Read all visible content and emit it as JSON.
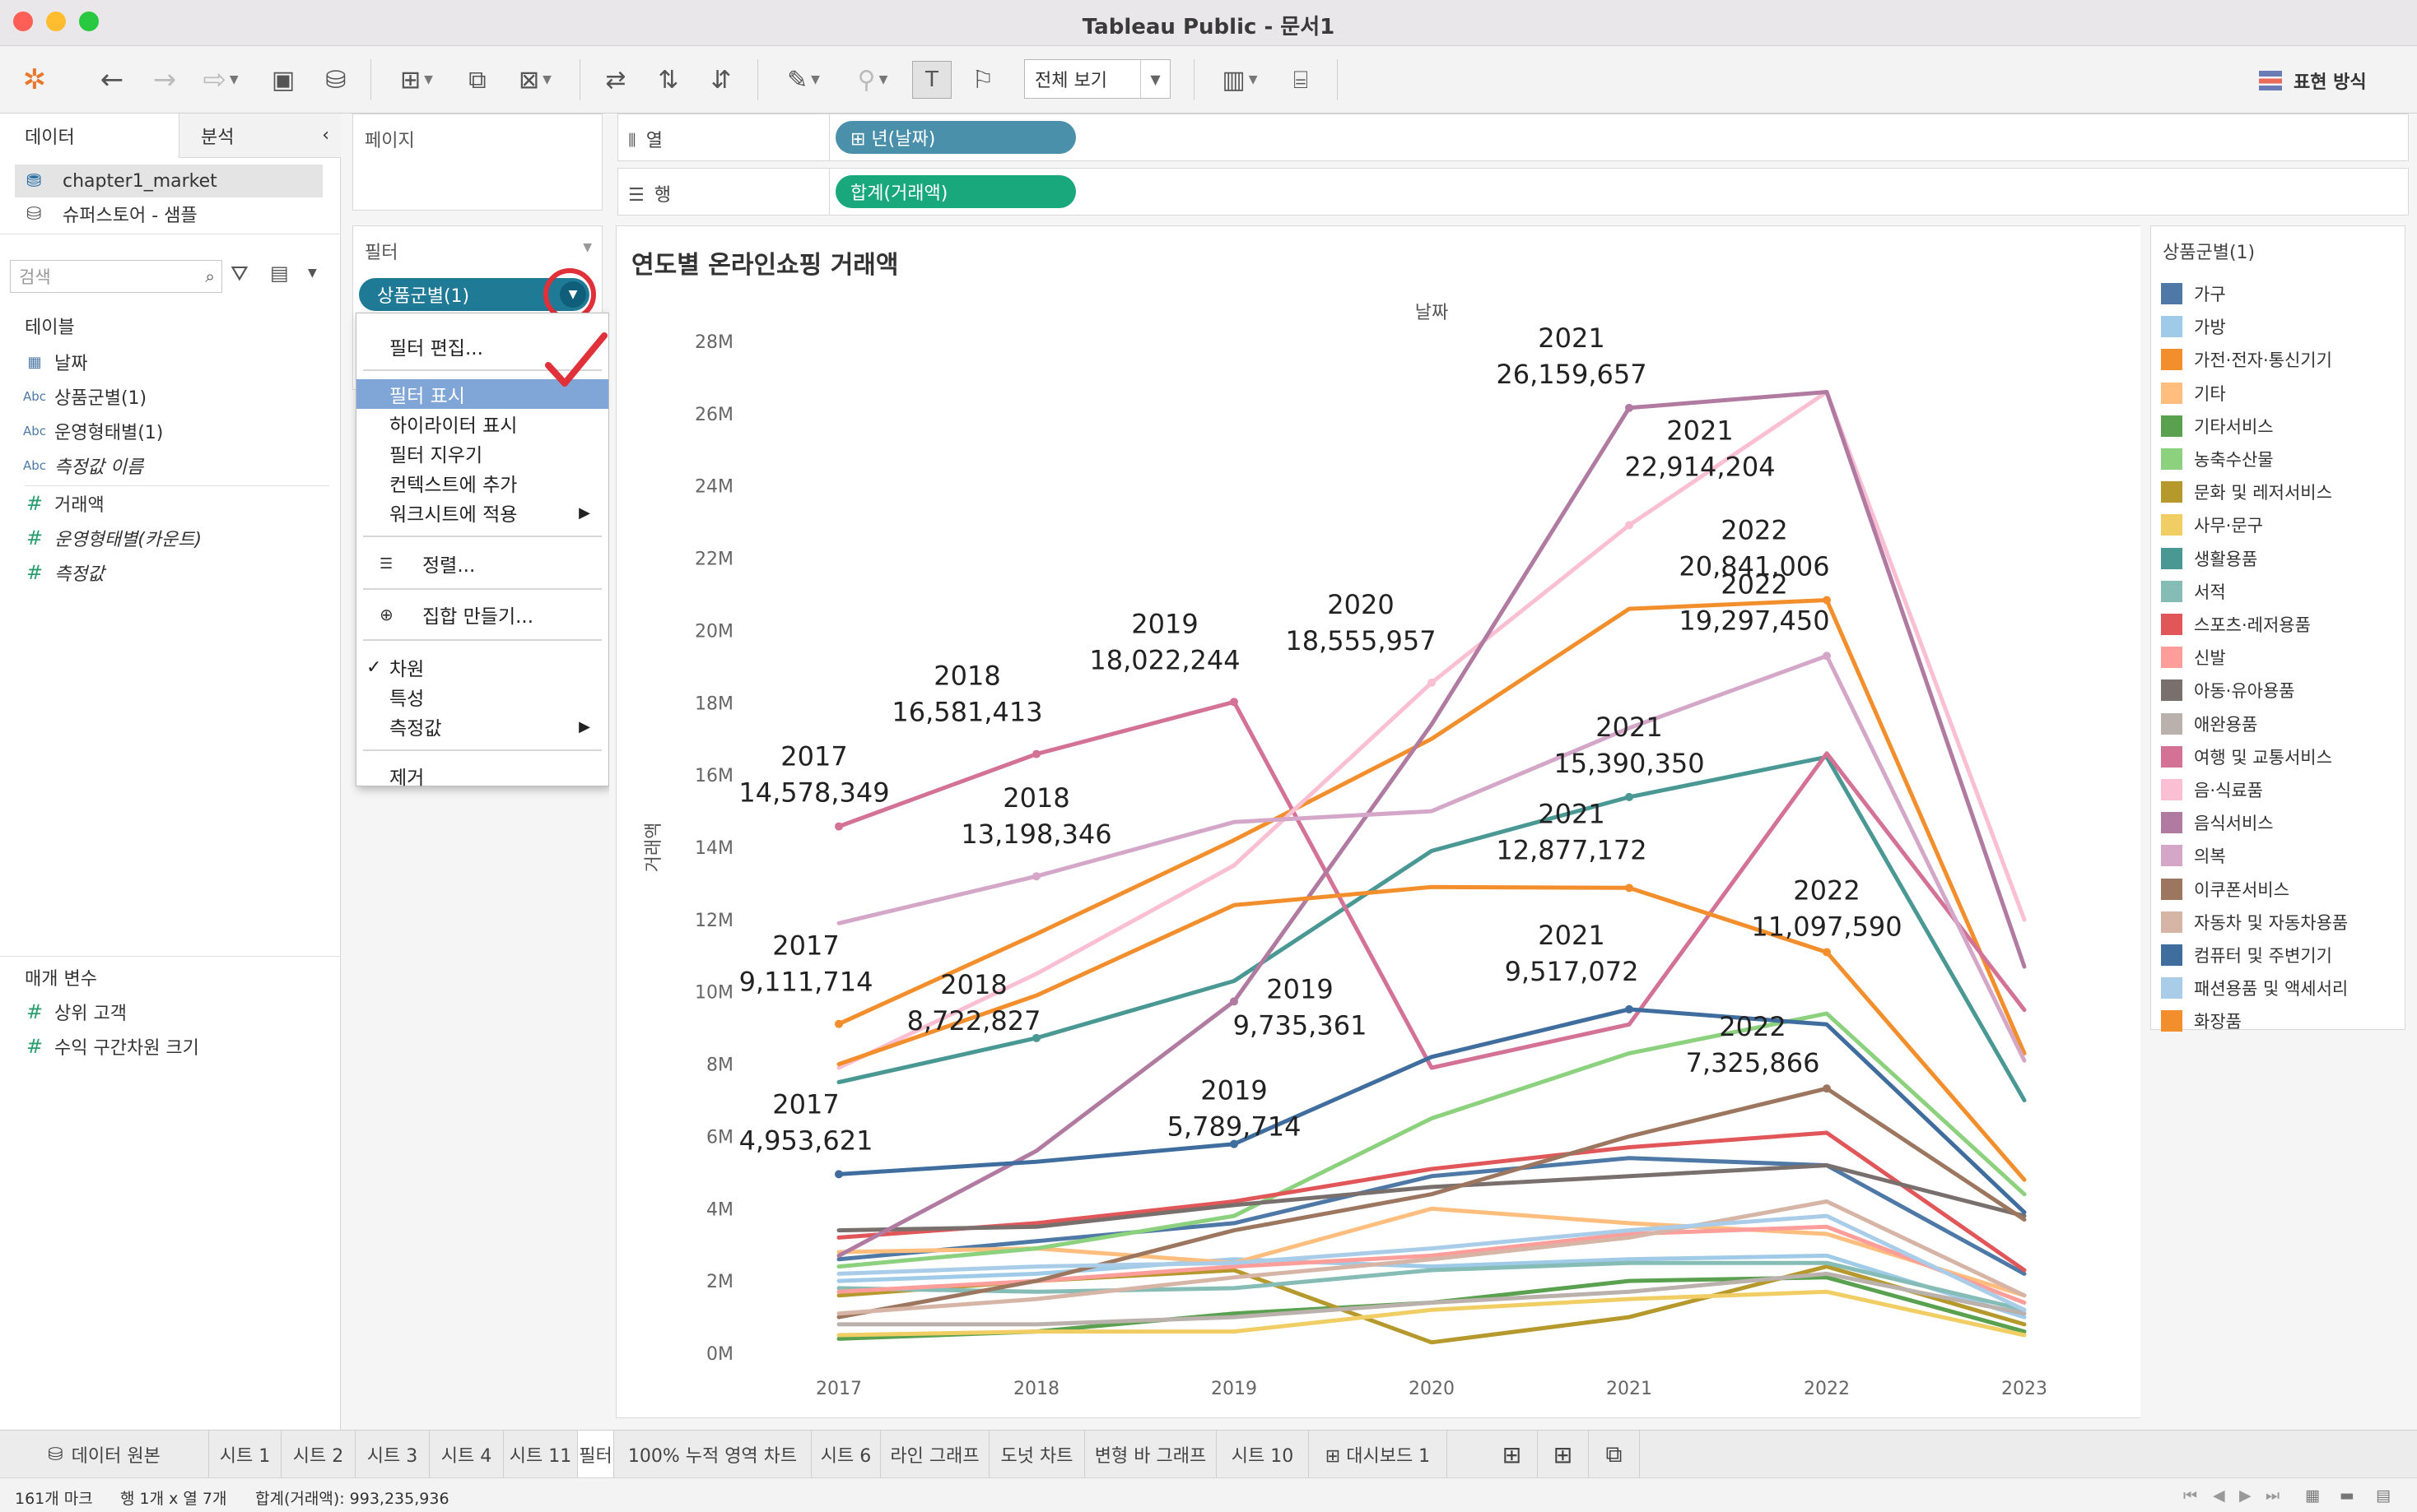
{
  "window": {
    "title": "Tableau Public - 문서1"
  },
  "toolbar": {
    "view_select": "전체 보기",
    "show_me": "표현 방식"
  },
  "data_pane": {
    "tabs": [
      "데이터",
      "분석"
    ],
    "sources": [
      "chapter1_market",
      "슈퍼스토어 - 샘플"
    ],
    "search_placeholder": "검색",
    "tables_label": "테이블",
    "fields": [
      {
        "icon": "calendar-icon",
        "glyph": "▦",
        "label": "날짜"
      },
      {
        "icon": "abc-icon",
        "glyph": "Abc",
        "label": "상품군별(1)"
      },
      {
        "icon": "abc-icon",
        "glyph": "Abc",
        "label": "운영형태별(1)"
      },
      {
        "icon": "abc-icon",
        "glyph": "Abc",
        "label": "측정값 이름"
      },
      {
        "icon": "hash-icon",
        "glyph": "#",
        "label": "거래액"
      },
      {
        "icon": "hash-icon",
        "glyph": "#",
        "label": "운영형태별(카운트)"
      },
      {
        "icon": "hash-icon",
        "glyph": "#",
        "label": "측정값"
      }
    ],
    "params_label": "매개 변수",
    "params": [
      {
        "glyph": "#",
        "label": "상위 고객"
      },
      {
        "glyph": "#",
        "label": "수익 구간차원 크기"
      }
    ]
  },
  "pages_card": {
    "title": "페이지"
  },
  "filters_card": {
    "title": "필터",
    "pill": "상품군별(1)"
  },
  "context_menu": {
    "items": [
      "필터 편집...",
      "필터 표시",
      "하이라이터 표시",
      "필터 지우기",
      "컨텍스트에 추가",
      "워크시트에 적용",
      "정렬...",
      "집합 만들기...",
      "차원",
      "특성",
      "측정값",
      "제거"
    ],
    "highlighted": "필터 표시",
    "checked": "차원"
  },
  "shelves": {
    "columns_label": "열",
    "columns_pill": "⊞ 년(날짜)",
    "columns_color": "#4a90aa",
    "rows_label": "행",
    "rows_pill": "합계(거래액)",
    "rows_color": "#19a77c"
  },
  "legend": {
    "title": "상품군별(1)",
    "items": [
      {
        "label": "가구",
        "color": "#4e79a7"
      },
      {
        "label": "가방",
        "color": "#a0cbe8"
      },
      {
        "label": "가전·전자·통신기기",
        "color": "#f28e2b"
      },
      {
        "label": "기타",
        "color": "#ffbe7d"
      },
      {
        "label": "기타서비스",
        "color": "#59a14f"
      },
      {
        "label": "농축수산물",
        "color": "#8cd17d"
      },
      {
        "label": "문화 및 레저서비스",
        "color": "#b6992d"
      },
      {
        "label": "사무·문구",
        "color": "#f1ce63"
      },
      {
        "label": "생활용품",
        "color": "#499894"
      },
      {
        "label": "서적",
        "color": "#86bcb6"
      },
      {
        "label": "스포츠·레저용품",
        "color": "#e15759"
      },
      {
        "label": "신발",
        "color": "#ff9d9a"
      },
      {
        "label": "아동·유아용품",
        "color": "#79706e"
      },
      {
        "label": "애완용품",
        "color": "#bab0ac"
      },
      {
        "label": "여행 및 교통서비스",
        "color": "#d37295"
      },
      {
        "label": "음·식료품",
        "color": "#fabfd2"
      },
      {
        "label": "음식서비스",
        "color": "#b07aa1"
      },
      {
        "label": "의복",
        "color": "#d4a6c8"
      },
      {
        "label": "이쿠폰서비스",
        "color": "#9d7660"
      },
      {
        "label": "자동차 및 자동차용품",
        "color": "#d7b5a6"
      },
      {
        "label": "컴퓨터 및 주변기기",
        "color": "#3f6d9e"
      },
      {
        "label": "패션용품 및 액세서리",
        "color": "#a9cde8"
      },
      {
        "label": "화장품",
        "color": "#f28e2b"
      }
    ]
  },
  "chart_data": {
    "type": "line",
    "title": "연도별 온라인쇼핑 거래액",
    "xlabel": "날짜",
    "ylabel": "거래액",
    "x": [
      "2017",
      "2018",
      "2019",
      "2020",
      "2021",
      "2022",
      "2023"
    ],
    "ylim": [
      0,
      28000000
    ],
    "y_ticks": [
      "0M",
      "2M",
      "4M",
      "6M",
      "8M",
      "10M",
      "12M",
      "14M",
      "16M",
      "18M",
      "20M",
      "22M",
      "24M",
      "26M",
      "28M"
    ],
    "legend_position": "right",
    "series": [
      {
        "name": "가구",
        "color": "#4e79a7",
        "values": [
          2600000,
          3100000,
          3600000,
          4900000,
          5400000,
          5200000,
          2200000
        ]
      },
      {
        "name": "가방",
        "color": "#a0cbe8",
        "values": [
          2000000,
          2200000,
          2600000,
          2400000,
          2600000,
          2700000,
          1000000
        ]
      },
      {
        "name": "가전·전자·통신기기",
        "color": "#f28e2b",
        "values": [
          9111714,
          11600000,
          14200000,
          17000000,
          20600000,
          20841006,
          8300000
        ]
      },
      {
        "name": "기타",
        "color": "#ffbe7d",
        "values": [
          2800000,
          2900000,
          2500000,
          4000000,
          3600000,
          3300000,
          1600000
        ]
      },
      {
        "name": "기타서비스",
        "color": "#59a14f",
        "values": [
          400000,
          600000,
          1100000,
          1400000,
          2000000,
          2100000,
          600000
        ]
      },
      {
        "name": "농축수산물",
        "color": "#8cd17d",
        "values": [
          2400000,
          2900000,
          3800000,
          6500000,
          8300000,
          9400000,
          4400000
        ]
      },
      {
        "name": "문화 및 레저서비스",
        "color": "#b6992d",
        "values": [
          1600000,
          2000000,
          2300000,
          300000,
          1000000,
          2400000,
          800000
        ]
      },
      {
        "name": "사무·문구",
        "color": "#f1ce63",
        "values": [
          500000,
          600000,
          600000,
          1200000,
          1500000,
          1700000,
          500000
        ]
      },
      {
        "name": "생활용품",
        "color": "#499894",
        "values": [
          7500000,
          8722827,
          10300000,
          13900000,
          15390350,
          16500000,
          7000000
        ]
      },
      {
        "name": "서적",
        "color": "#86bcb6",
        "values": [
          1800000,
          1700000,
          1800000,
          2300000,
          2500000,
          2500000,
          1200000
        ]
      },
      {
        "name": "스포츠·레저용품",
        "color": "#e15759",
        "values": [
          3200000,
          3600000,
          4200000,
          5100000,
          5700000,
          6100000,
          2300000
        ]
      },
      {
        "name": "신발",
        "color": "#ff9d9a",
        "values": [
          1700000,
          2000000,
          2400000,
          2700000,
          3300000,
          3500000,
          1400000
        ]
      },
      {
        "name": "아동·유아용품",
        "color": "#79706e",
        "values": [
          3400000,
          3500000,
          4100000,
          4600000,
          4900000,
          5200000,
          3800000
        ]
      },
      {
        "name": "애완용품",
        "color": "#bab0ac",
        "values": [
          800000,
          800000,
          1000000,
          1400000,
          1700000,
          2200000,
          1100000
        ]
      },
      {
        "name": "여행 및 교통서비스",
        "color": "#d37295",
        "values": [
          14578349,
          16581413,
          18022244,
          7900000,
          9100000,
          16600000,
          9500000
        ]
      },
      {
        "name": "음·식료품",
        "color": "#fabfd2",
        "values": [
          7900000,
          10500000,
          13500000,
          18555957,
          22914204,
          26600000,
          12000000
        ]
      },
      {
        "name": "음식서비스",
        "color": "#b07aa1",
        "values": [
          2700000,
          5600000,
          9735361,
          17400000,
          26159657,
          26600000,
          10700000
        ]
      },
      {
        "name": "의복",
        "color": "#d4a6c8",
        "values": [
          11900000,
          13198346,
          14700000,
          15000000,
          17300000,
          19297450,
          8100000
        ]
      },
      {
        "name": "이쿠폰서비스",
        "color": "#9d7660",
        "values": [
          1000000,
          2000000,
          3400000,
          4400000,
          6000000,
          7325866,
          3700000
        ]
      },
      {
        "name": "자동차 및 자동차용품",
        "color": "#d7b5a6",
        "values": [
          1100000,
          1500000,
          2100000,
          2600000,
          3200000,
          4200000,
          1600000
        ]
      },
      {
        "name": "컴퓨터 및 주변기기",
        "color": "#3f6d9e",
        "values": [
          4953621,
          5300000,
          5789714,
          8200000,
          9517072,
          9100000,
          3900000
        ]
      },
      {
        "name": "패션용품 및 액세서리",
        "color": "#a9cde8",
        "values": [
          2200000,
          2400000,
          2500000,
          2900000,
          3400000,
          3800000,
          1200000
        ]
      },
      {
        "name": "화장품",
        "color": "#f28e2b",
        "values": [
          8000000,
          9900000,
          12400000,
          12900000,
          12877172,
          11097590,
          4800000
        ]
      }
    ],
    "annotations": [
      {
        "year": "2017",
        "value": "14,578,349",
        "series": "여행 및 교통서비스"
      },
      {
        "year": "2018",
        "value": "16,581,413",
        "series": "여행 및 교통서비스"
      },
      {
        "year": "2019",
        "value": "18,022,244",
        "series": "여행 및 교통서비스"
      },
      {
        "year": "2020",
        "value": "18,555,957",
        "series": "음·식료품"
      },
      {
        "year": "2021",
        "value": "26,159,657",
        "series": "음식서비스"
      },
      {
        "year": "2021",
        "value": "22,914,204",
        "series": "음·식료품"
      },
      {
        "year": "2022",
        "value": "20,841,006",
        "series": "가전·전자·통신기기"
      },
      {
        "year": "2022",
        "value": "19,297,450",
        "series": "의복"
      },
      {
        "year": "2018",
        "value": "13,198,346",
        "series": "의복"
      },
      {
        "year": "2017",
        "value": "9,111,714",
        "series": "가전·전자·통신기기"
      },
      {
        "year": "2021",
        "value": "15,390,350",
        "series": "생활용품"
      },
      {
        "year": "2021",
        "value": "12,877,172",
        "series": "화장품"
      },
      {
        "year": "2021",
        "value": "9,517,072",
        "series": "컴퓨터 및 주변기기"
      },
      {
        "year": "2022",
        "value": "11,097,590",
        "series": "화장품"
      },
      {
        "year": "2018",
        "value": "8,722,827",
        "series": "생활용품"
      },
      {
        "year": "2019",
        "value": "9,735,361",
        "series": "음식서비스"
      },
      {
        "year": "2017",
        "value": "4,953,621",
        "series": "컴퓨터 및 주변기기"
      },
      {
        "year": "2019",
        "value": "5,789,714",
        "series": "컴퓨터 및 주변기기"
      },
      {
        "year": "2022",
        "value": "7,325,866",
        "series": "이쿠폰서비스"
      }
    ]
  },
  "sheet_tabs": {
    "data_source": "데이터 원본",
    "tabs": [
      "시트 1",
      "시트 2",
      "시트 3",
      "시트 4",
      "시트 11",
      "필터",
      "100% 누적 영역 차트",
      "시트 6",
      "라인 그래프",
      "도넛 차트",
      "변형 바 그래프",
      "시트 10",
      "⊞ 대시보드 1"
    ],
    "active": "필터"
  },
  "status": {
    "marks": "161개 마크",
    "rows_cols": "행 1개 x 열 7개",
    "sum": "합계(거래액): 993,235,936"
  }
}
